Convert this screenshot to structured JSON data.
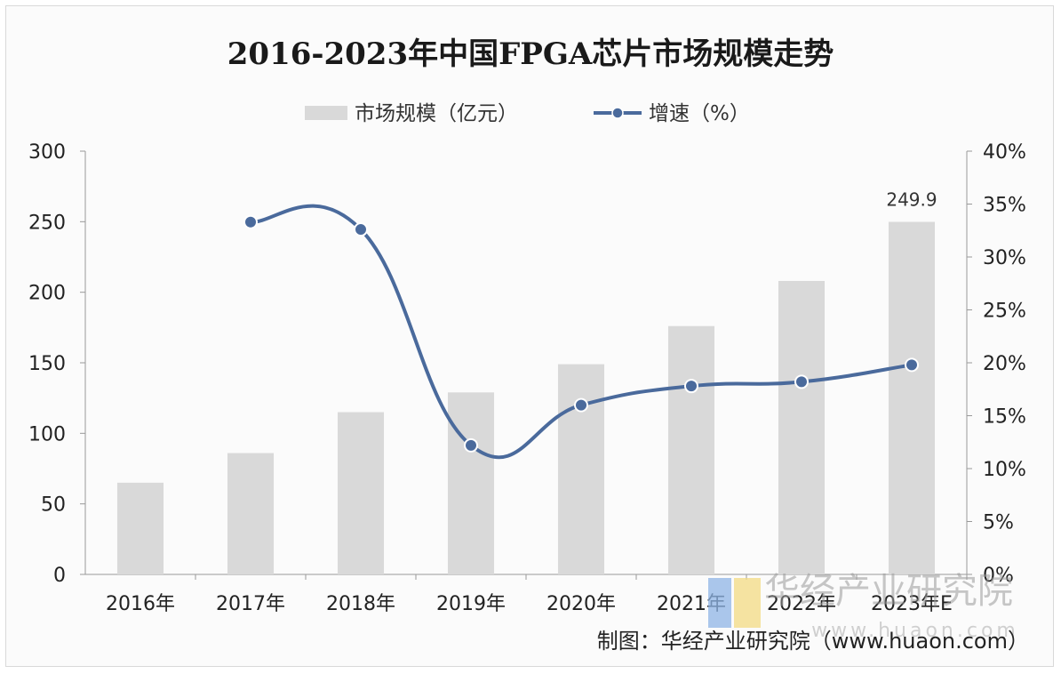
{
  "chart_data": {
    "type": "bar+line",
    "title": "2016-2023年中国FPGA芯片市场规模走势",
    "categories": [
      "2016年",
      "2017年",
      "2018年",
      "2019年",
      "2020年",
      "2021年",
      "2022年",
      "2023年E"
    ],
    "series": [
      {
        "name": "市场规模（亿元）",
        "type": "bar",
        "axis": "left",
        "values": [
          65,
          86,
          115,
          129,
          149,
          176,
          208,
          249.9
        ],
        "data_labels": {
          "249.9": "249.9"
        }
      },
      {
        "name": "增速（%）",
        "type": "line",
        "axis": "right",
        "values": [
          null,
          33.3,
          32.6,
          12.2,
          16.0,
          17.8,
          18.2,
          19.8
        ]
      }
    ],
    "y_left": {
      "min": 0,
      "max": 300,
      "ticks": [
        "0",
        "50",
        "100",
        "150",
        "200",
        "250",
        "300"
      ]
    },
    "y_right": {
      "min": 0,
      "max": 40,
      "ticks": [
        "0%",
        "5%",
        "10%",
        "15%",
        "20%",
        "25%",
        "30%",
        "35%",
        "40%"
      ]
    },
    "legend_position": "top-center",
    "grid": false,
    "colors": {
      "bar": "#d9d9d9",
      "line": "#4a6a9c",
      "marker_fill": "#4a6a9c",
      "marker_stroke": "#ffffff"
    }
  },
  "data_label_2023": "249.9",
  "source": "制图：华经产业研究院（www.huaon.com）",
  "watermark": {
    "text": "华经产业研究院",
    "url": "www.huaon.com"
  }
}
